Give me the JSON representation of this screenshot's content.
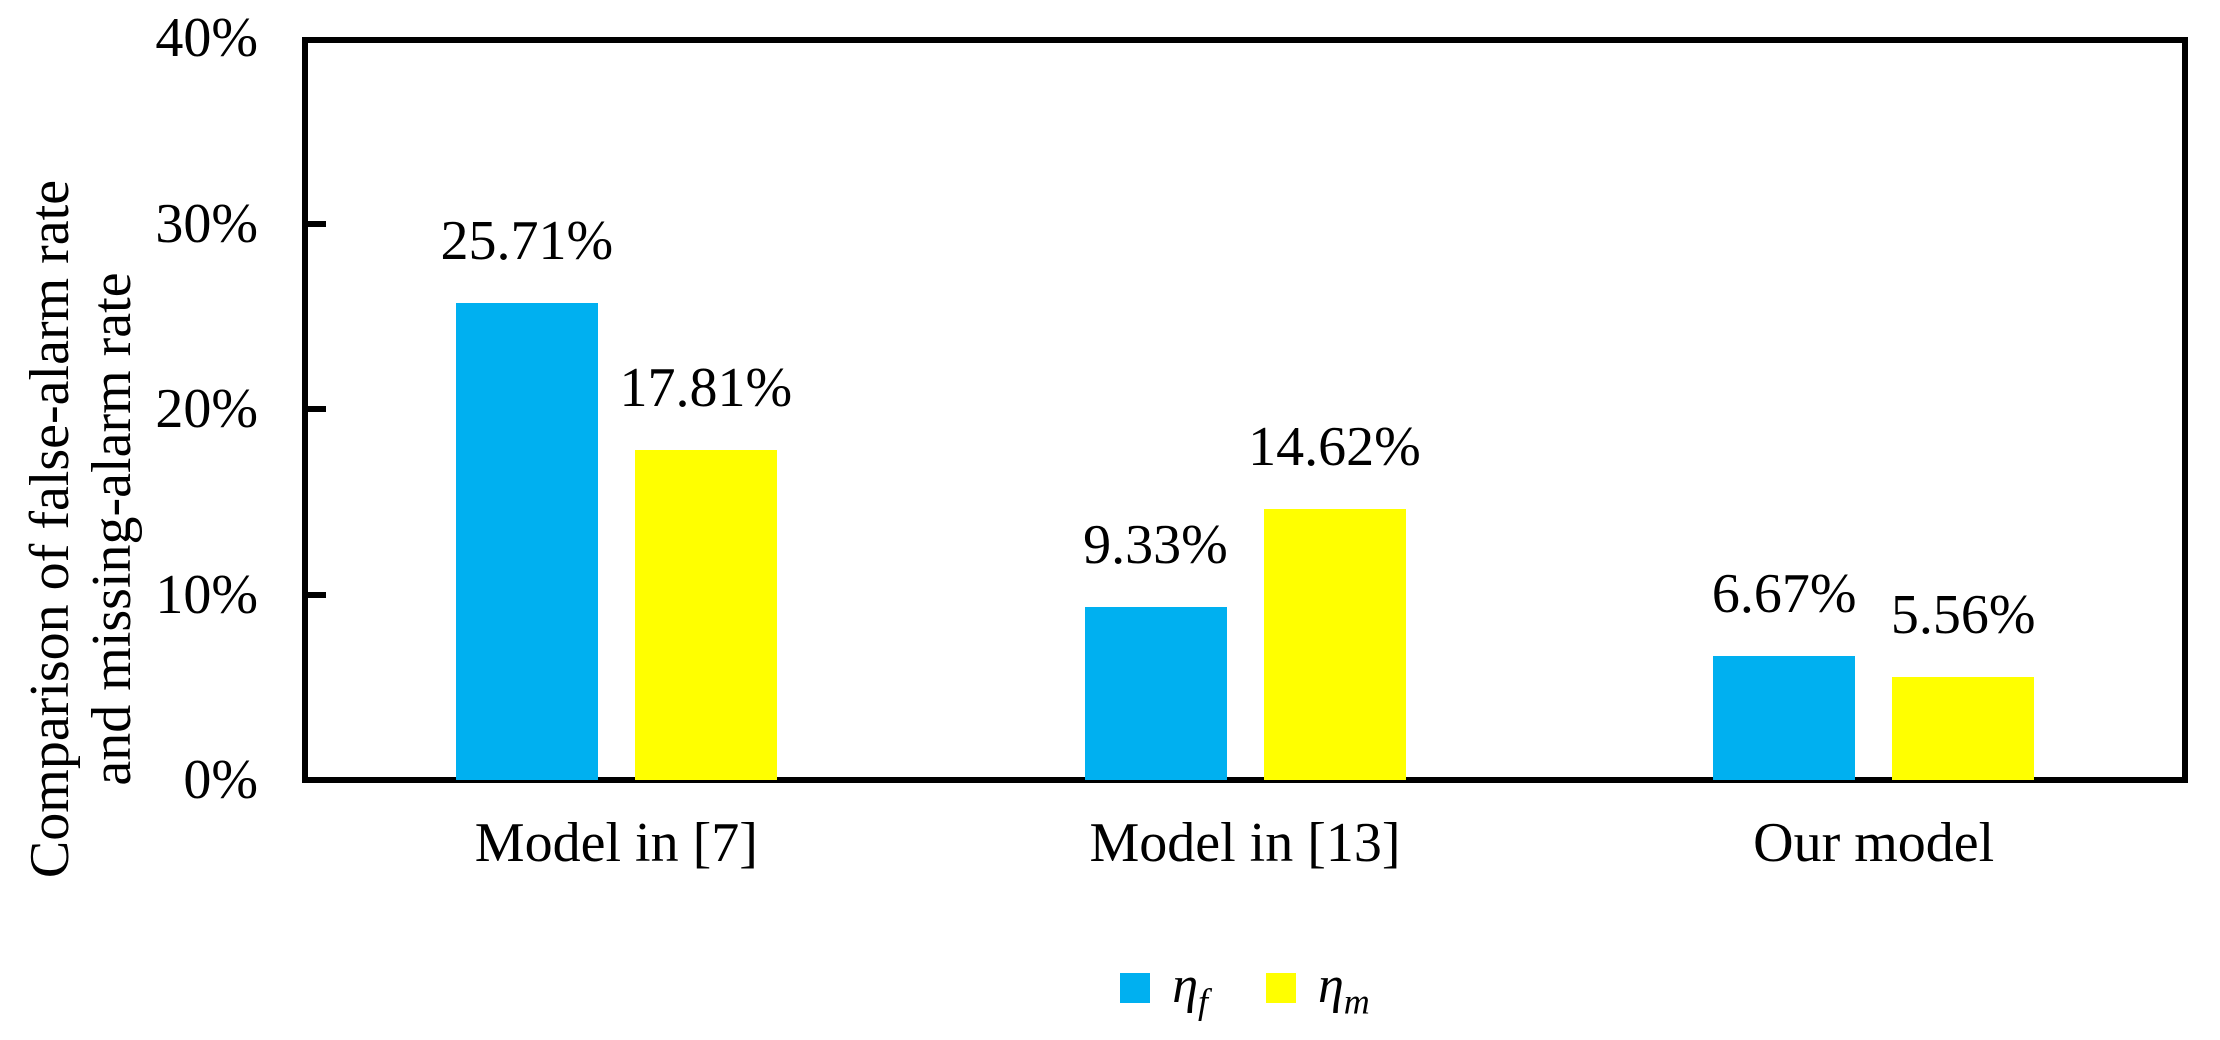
{
  "chart_data": {
    "type": "bar",
    "title": "",
    "categories": [
      "Model in [7]",
      "Model in [13]",
      "Our model"
    ],
    "series": [
      {
        "name": "ηf",
        "symbol": "η",
        "subscript": "f",
        "color": "#00B0F0",
        "values": [
          25.71,
          9.33,
          6.67
        ],
        "labels": [
          "25.71%",
          "9.33%",
          "6.67%"
        ]
      },
      {
        "name": "ηm",
        "symbol": "η",
        "subscript": "m",
        "color": "#FFFF00",
        "values": [
          17.81,
          14.62,
          5.56
        ],
        "labels": [
          "17.81%",
          "14.62%",
          "5.56%"
        ]
      }
    ],
    "ylabel_line1": "Comparison of false-alarm rate",
    "ylabel_line2": "and missing-alarm rate",
    "ylim": [
      0,
      40
    ],
    "yticks": [
      {
        "value": 0,
        "label": "0%"
      },
      {
        "value": 10,
        "label": "10%"
      },
      {
        "value": 20,
        "label": "20%"
      },
      {
        "value": 30,
        "label": "30%"
      },
      {
        "value": 40,
        "label": "40%"
      }
    ],
    "grid": false,
    "legend_position": "bottom",
    "bar_colors": {
      "false_alarm": "#00B0F0",
      "missing_alarm": "#FFFF00"
    },
    "axis_color": "#000000"
  }
}
